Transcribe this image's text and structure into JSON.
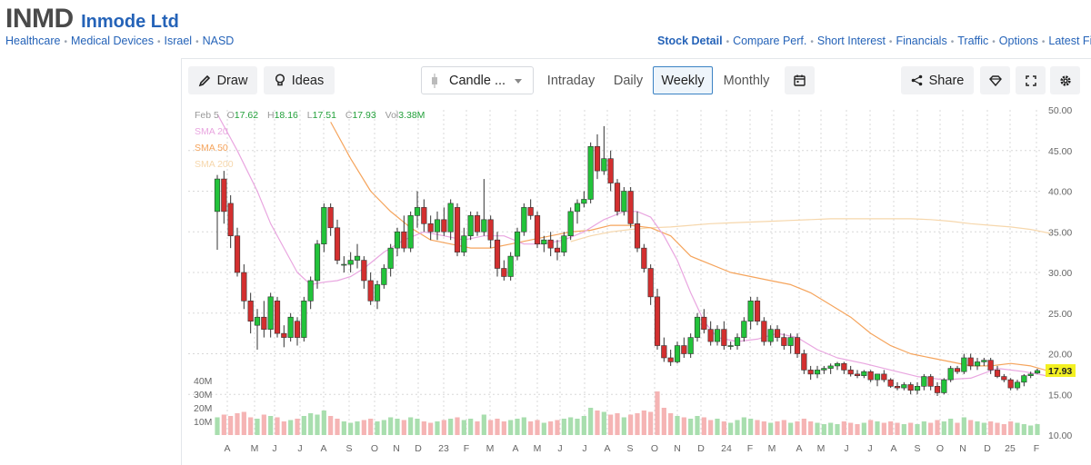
{
  "header": {
    "ticker": "INMD",
    "company": "Inmode Ltd"
  },
  "categories": [
    "Healthcare",
    "Medical Devices",
    "Israel",
    "NASD"
  ],
  "nav": [
    "Stock Detail",
    "Compare Perf.",
    "Short Interest",
    "Financials",
    "Traffic",
    "Options",
    "Latest Fi"
  ],
  "toolbar": {
    "draw": "Draw",
    "ideas": "Ideas",
    "chart_type": "Candle ...",
    "intraday": "Intraday",
    "daily": "Daily",
    "weekly": "Weekly",
    "monthly": "Monthly",
    "share": "Share"
  },
  "ohlc": {
    "date": "Feb 5",
    "o_label": "O",
    "o": "17.62",
    "h_label": "H",
    "h": "18.16",
    "l_label": "L",
    "l": "17.51",
    "c_label": "C",
    "c": "17.93",
    "vol_label": "Vol",
    "vol": "3.38M"
  },
  "sma_legend": [
    {
      "label": "SMA 20",
      "color": "#e9a6e0"
    },
    {
      "label": "SMA 50",
      "color": "#f5a45c"
    },
    {
      "label": "SMA 200",
      "color": "#f6d7ac"
    }
  ],
  "colors": {
    "up": "#22c33a",
    "down": "#d32f2f",
    "vol_up": "#a8deae",
    "vol_down": "#f5b4b4",
    "grid": "#d8d8d8",
    "axis_text": "#666",
    "price_tag": "#f3f021"
  },
  "chart_data": {
    "type": "candlestick",
    "interval": "weekly",
    "y_ticks": [
      "50.00",
      "45.00",
      "40.00",
      "35.00",
      "30.00",
      "25.00",
      "20.00",
      "15.00",
      "10.00"
    ],
    "ylim": [
      10,
      50
    ],
    "volume_ticks": [
      "40M",
      "30M",
      "20M",
      "10M"
    ],
    "x_ticks": [
      "A",
      "M",
      "J",
      "J",
      "A",
      "S",
      "O",
      "N",
      "D",
      "23",
      "F",
      "M",
      "A",
      "M",
      "J",
      "J",
      "A",
      "S",
      "O",
      "N",
      "D",
      "24",
      "F",
      "M",
      "A",
      "M",
      "J",
      "J",
      "A",
      "S",
      "O",
      "N",
      "D",
      "25",
      "F"
    ],
    "last_price": "17.93",
    "candles": [
      [
        37.5,
        42.0,
        32.8,
        41.5,
        13
      ],
      [
        41.5,
        42.5,
        36.0,
        37.5,
        15
      ],
      [
        38.5,
        39.5,
        33.0,
        34.5,
        14
      ],
      [
        34.5,
        35.5,
        29.5,
        30.0,
        16
      ],
      [
        30.0,
        31.0,
        25.5,
        26.5,
        17
      ],
      [
        26.5,
        27.5,
        22.5,
        24.0,
        13
      ],
      [
        23.5,
        25.5,
        20.5,
        24.5,
        12
      ],
      [
        24.5,
        26.5,
        22.0,
        23.0,
        15
      ],
      [
        23.0,
        27.5,
        22.0,
        27.0,
        14
      ],
      [
        26.5,
        27.0,
        22.0,
        22.5,
        13
      ],
      [
        22.5,
        23.5,
        20.8,
        22.0,
        10
      ],
      [
        22.0,
        25.0,
        21.5,
        24.5,
        11
      ],
      [
        24.0,
        24.5,
        21.0,
        22.0,
        12
      ],
      [
        22.0,
        27.0,
        21.5,
        26.5,
        14
      ],
      [
        26.5,
        29.5,
        25.5,
        29.0,
        16
      ],
      [
        29.0,
        34.0,
        28.0,
        33.5,
        15
      ],
      [
        33.5,
        38.5,
        32.5,
        38.0,
        18
      ],
      [
        38.0,
        38.5,
        34.5,
        35.5,
        14
      ],
      [
        35.5,
        36.5,
        31.0,
        31.5,
        12
      ],
      [
        31.0,
        32.0,
        30.0,
        31.0,
        10
      ],
      [
        31.0,
        32.5,
        30.0,
        31.5,
        9
      ],
      [
        31.5,
        33.5,
        30.5,
        32.0,
        10
      ],
      [
        31.5,
        32.0,
        28.0,
        29.0,
        11
      ],
      [
        29.0,
        30.0,
        26.0,
        26.5,
        12
      ],
      [
        26.5,
        29.0,
        25.5,
        28.5,
        10
      ],
      [
        28.5,
        31.0,
        28.0,
        30.5,
        11
      ],
      [
        30.5,
        33.5,
        29.5,
        33.0,
        13
      ],
      [
        33.0,
        35.5,
        32.0,
        35.0,
        12
      ],
      [
        35.0,
        37.0,
        32.5,
        33.0,
        11
      ],
      [
        33.0,
        37.5,
        32.5,
        37.0,
        13
      ],
      [
        37.0,
        40.0,
        35.5,
        38.0,
        12
      ],
      [
        38.0,
        39.0,
        35.0,
        36.0,
        10
      ],
      [
        36.0,
        37.0,
        34.0,
        35.0,
        9
      ],
      [
        35.0,
        37.5,
        34.0,
        36.5,
        10
      ],
      [
        36.5,
        38.0,
        34.5,
        35.0,
        11
      ],
      [
        35.0,
        39.0,
        34.0,
        38.5,
        12
      ],
      [
        38.0,
        38.5,
        32.0,
        32.5,
        13
      ],
      [
        32.5,
        35.5,
        32.0,
        34.5,
        11
      ],
      [
        34.5,
        37.5,
        34.0,
        37.0,
        12
      ],
      [
        37.0,
        37.5,
        34.5,
        35.0,
        10
      ],
      [
        35.0,
        41.5,
        34.5,
        36.5,
        15
      ],
      [
        36.5,
        37.0,
        33.0,
        34.0,
        11
      ],
      [
        34.0,
        35.0,
        29.5,
        30.5,
        12
      ],
      [
        30.5,
        31.5,
        29.0,
        29.5,
        10
      ],
      [
        29.5,
        32.5,
        29.0,
        32.0,
        11
      ],
      [
        32.0,
        35.5,
        31.5,
        35.0,
        12
      ],
      [
        35.0,
        38.5,
        34.5,
        38.0,
        13
      ],
      [
        38.0,
        39.0,
        36.5,
        37.0,
        10
      ],
      [
        37.0,
        37.5,
        33.0,
        33.5,
        11
      ],
      [
        33.5,
        34.5,
        32.5,
        34.0,
        9
      ],
      [
        34.0,
        35.0,
        32.0,
        33.0,
        10
      ],
      [
        33.0,
        34.0,
        31.5,
        32.5,
        11
      ],
      [
        32.5,
        35.0,
        32.0,
        34.5,
        12
      ],
      [
        34.5,
        38.0,
        34.0,
        37.5,
        13
      ],
      [
        37.5,
        39.0,
        36.0,
        38.5,
        12
      ],
      [
        38.5,
        40.0,
        38.0,
        39.0,
        14
      ],
      [
        39.0,
        46.0,
        38.5,
        45.5,
        20
      ],
      [
        45.5,
        47.0,
        41.5,
        42.5,
        18
      ],
      [
        42.5,
        48.0,
        42.0,
        44.0,
        17
      ],
      [
        44.0,
        45.0,
        40.0,
        41.0,
        15
      ],
      [
        41.0,
        41.5,
        37.0,
        37.5,
        16
      ],
      [
        37.5,
        40.5,
        37.0,
        40.0,
        13
      ],
      [
        40.0,
        40.5,
        35.5,
        36.0,
        15
      ],
      [
        36.0,
        37.5,
        32.5,
        33.0,
        16
      ],
      [
        33.0,
        33.5,
        30.0,
        30.5,
        18
      ],
      [
        30.5,
        31.0,
        26.0,
        27.0,
        17
      ],
      [
        27.0,
        28.0,
        20.5,
        21.0,
        32
      ],
      [
        21.0,
        22.0,
        19.0,
        19.5,
        20
      ],
      [
        19.5,
        20.5,
        18.5,
        19.0,
        16
      ],
      [
        19.0,
        21.5,
        18.8,
        21.0,
        14
      ],
      [
        21.0,
        22.0,
        19.5,
        20.0,
        13
      ],
      [
        20.0,
        22.5,
        19.5,
        22.0,
        12
      ],
      [
        22.0,
        25.0,
        21.5,
        24.5,
        14
      ],
      [
        24.5,
        25.5,
        22.5,
        23.0,
        13
      ],
      [
        23.0,
        24.0,
        21.0,
        21.5,
        11
      ],
      [
        21.5,
        23.5,
        21.0,
        23.0,
        12
      ],
      [
        23.0,
        24.0,
        20.5,
        21.0,
        10
      ],
      [
        21.0,
        21.5,
        20.5,
        21.0,
        9
      ],
      [
        21.0,
        22.5,
        20.5,
        22.0,
        11
      ],
      [
        22.0,
        24.5,
        21.5,
        24.0,
        13
      ],
      [
        24.0,
        27.0,
        23.0,
        26.5,
        12
      ],
      [
        26.5,
        27.0,
        23.5,
        24.0,
        11
      ],
      [
        24.0,
        24.5,
        21.0,
        21.5,
        10
      ],
      [
        21.5,
        23.5,
        21.0,
        23.0,
        9
      ],
      [
        23.0,
        23.5,
        21.5,
        22.0,
        10
      ],
      [
        22.0,
        22.5,
        20.5,
        21.0,
        11
      ],
      [
        21.0,
        22.5,
        20.0,
        22.0,
        9
      ],
      [
        22.0,
        22.5,
        19.5,
        20.0,
        10
      ],
      [
        20.0,
        20.5,
        17.5,
        18.0,
        12
      ],
      [
        18.0,
        18.5,
        16.8,
        17.5,
        10
      ],
      [
        17.5,
        18.5,
        17.0,
        18.0,
        9
      ],
      [
        18.0,
        18.5,
        17.5,
        18.2,
        8
      ],
      [
        18.2,
        18.8,
        17.5,
        18.5,
        9
      ],
      [
        18.5,
        19.0,
        18.0,
        18.8,
        8
      ],
      [
        18.8,
        19.0,
        17.5,
        18.0,
        10
      ],
      [
        18.0,
        18.5,
        17.2,
        17.5,
        9
      ],
      [
        17.5,
        18.0,
        17.0,
        17.3,
        8
      ],
      [
        17.3,
        18.0,
        17.0,
        17.8,
        9
      ],
      [
        17.8,
        18.0,
        16.5,
        16.8,
        11
      ],
      [
        16.8,
        17.5,
        16.0,
        17.5,
        10
      ],
      [
        17.5,
        18.0,
        16.5,
        16.8,
        9
      ],
      [
        16.8,
        17.0,
        15.8,
        16.0,
        10
      ],
      [
        16.0,
        16.5,
        15.5,
        15.8,
        9
      ],
      [
        15.8,
        16.5,
        15.5,
        16.2,
        8
      ],
      [
        16.2,
        16.5,
        15.0,
        15.5,
        9
      ],
      [
        15.5,
        16.5,
        15.0,
        16.0,
        8
      ],
      [
        16.0,
        17.5,
        15.5,
        17.2,
        10
      ],
      [
        17.2,
        17.5,
        15.5,
        16.0,
        9
      ],
      [
        16.0,
        16.5,
        14.8,
        15.2,
        11
      ],
      [
        15.2,
        17.0,
        15.0,
        16.8,
        10
      ],
      [
        16.8,
        18.5,
        16.5,
        18.2,
        12
      ],
      [
        18.2,
        18.5,
        17.5,
        17.8,
        9
      ],
      [
        17.8,
        20.0,
        17.5,
        19.5,
        13
      ],
      [
        19.5,
        20.0,
        18.0,
        18.5,
        11
      ],
      [
        18.5,
        19.5,
        18.0,
        19.0,
        10
      ],
      [
        19.0,
        19.5,
        18.5,
        19.2,
        9
      ],
      [
        19.2,
        19.5,
        17.5,
        18.0,
        10
      ],
      [
        18.0,
        18.5,
        17.0,
        17.2,
        9
      ],
      [
        17.2,
        17.5,
        16.5,
        16.8,
        8
      ],
      [
        16.8,
        17.0,
        15.5,
        15.8,
        10
      ],
      [
        15.8,
        16.8,
        15.5,
        16.5,
        9
      ],
      [
        16.5,
        17.5,
        16.0,
        17.3,
        8
      ],
      [
        17.3,
        17.8,
        17.0,
        17.5,
        7
      ],
      [
        17.62,
        18.16,
        17.51,
        17.93,
        8
      ]
    ],
    "sma20": [
      [
        0,
        49.5
      ],
      [
        3,
        45.0
      ],
      [
        6,
        40.0
      ],
      [
        8,
        36.0
      ],
      [
        10,
        33.0
      ],
      [
        12,
        30.0
      ],
      [
        14,
        28.5
      ],
      [
        16,
        28.8
      ],
      [
        18,
        29.0
      ],
      [
        20,
        29.5
      ],
      [
        22,
        30.5
      ],
      [
        25,
        32.5
      ],
      [
        28,
        34.0
      ],
      [
        31,
        35.0
      ],
      [
        34,
        34.5
      ],
      [
        37,
        34.0
      ],
      [
        40,
        34.5
      ],
      [
        43,
        34.5
      ],
      [
        46,
        33.5
      ],
      [
        49,
        33.5
      ],
      [
        52,
        34.0
      ],
      [
        55,
        35.0
      ],
      [
        58,
        36.5
      ],
      [
        61,
        37.5
      ],
      [
        63,
        37.5
      ],
      [
        65,
        36.8
      ],
      [
        67,
        34.5
      ],
      [
        69,
        31.5
      ],
      [
        71,
        27.5
      ],
      [
        73,
        24.0
      ],
      [
        75,
        22.0
      ],
      [
        78,
        21.5
      ],
      [
        81,
        21.8
      ],
      [
        84,
        22.5
      ],
      [
        87,
        22.0
      ],
      [
        90,
        20.5
      ],
      [
        93,
        19.5
      ],
      [
        97,
        18.8
      ],
      [
        101,
        18.0
      ],
      [
        105,
        17.2
      ],
      [
        109,
        16.8
      ],
      [
        113,
        17.0
      ],
      [
        117,
        18.2
      ],
      [
        121,
        17.8
      ],
      [
        125,
        17.2
      ]
    ],
    "sma50": [
      [
        17,
        48.5
      ],
      [
        20,
        44.0
      ],
      [
        23,
        40.0
      ],
      [
        26,
        37.5
      ],
      [
        29,
        35.5
      ],
      [
        32,
        34.0
      ],
      [
        35,
        33.5
      ],
      [
        38,
        33.0
      ],
      [
        41,
        33.0
      ],
      [
        44,
        33.5
      ],
      [
        47,
        34.0
      ],
      [
        50,
        34.5
      ],
      [
        53,
        35.0
      ],
      [
        56,
        35.2
      ],
      [
        59,
        35.8
      ],
      [
        62,
        35.8
      ],
      [
        65,
        35.5
      ],
      [
        68,
        34.5
      ],
      [
        71,
        32.0
      ],
      [
        74,
        31.0
      ],
      [
        77,
        30.0
      ],
      [
        80,
        29.5
      ],
      [
        83,
        29.0
      ],
      [
        86,
        28.5
      ],
      [
        89,
        27.5
      ],
      [
        92,
        26.0
      ],
      [
        95,
        24.5
      ],
      [
        98,
        22.5
      ],
      [
        101,
        21.0
      ],
      [
        104,
        20.0
      ],
      [
        107,
        19.5
      ],
      [
        110,
        19.0
      ],
      [
        113,
        18.5
      ],
      [
        116,
        18.5
      ],
      [
        119,
        18.8
      ],
      [
        122,
        18.5
      ],
      [
        125,
        17.8
      ]
    ],
    "sma200": [
      [
        53,
        33.8
      ],
      [
        56,
        34.5
      ],
      [
        59,
        35.0
      ],
      [
        62,
        35.3
      ],
      [
        65,
        35.5
      ],
      [
        68,
        35.6
      ],
      [
        71,
        35.8
      ],
      [
        74,
        36.0
      ],
      [
        77,
        36.1
      ],
      [
        80,
        36.2
      ],
      [
        83,
        36.3
      ],
      [
        86,
        36.4
      ],
      [
        89,
        36.5
      ],
      [
        92,
        36.6
      ],
      [
        95,
        36.6
      ],
      [
        98,
        36.6
      ],
      [
        101,
        36.6
      ],
      [
        104,
        36.6
      ],
      [
        107,
        36.5
      ],
      [
        110,
        36.3
      ],
      [
        113,
        36.0
      ],
      [
        116,
        35.8
      ],
      [
        119,
        35.6
      ],
      [
        122,
        35.3
      ],
      [
        125,
        34.8
      ]
    ]
  }
}
